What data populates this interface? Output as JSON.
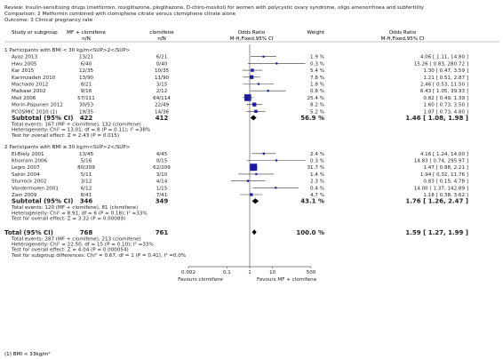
{
  "header": {
    "review": "Review:   Insulin-sensitising drugs (metformin, rosiglitazone, pioglitazone, D-chiro-inositol) for women with polycystic ovary syndrome, oligo amenorrhoea and subfertility",
    "comparison": "Comparison:   2 Metformin combined with clomiphene citrate versus clomiphene citrate alone",
    "outcome": "Outcome:   3 Clinical pregnancy rate"
  },
  "columns": {
    "study": "Study or subgroup",
    "exp": "MF + clomifene",
    "ctrl": "clomifene",
    "or_head": "Odds Ratio",
    "or_sub": "M-H,Fixed,95% CI",
    "weight": "Weight",
    "or2_head": "Odds Ratio",
    "or2_sub": "M-H,Fixed,95% CI",
    "nn": "n/N"
  },
  "colors": {
    "marker": "#1a1aa6",
    "diamond": "#000000",
    "line": "#555555"
  },
  "chart_data": {
    "type": "forest",
    "xscale": "log",
    "xlim": [
      0.002,
      500
    ],
    "x_ticks": [
      0.002,
      0.1,
      1,
      10,
      500
    ],
    "x_tick_labels": [
      "0.002",
      "0.1",
      "1",
      "10",
      "500"
    ],
    "x_left_label": "Favours clomifene",
    "x_right_label": "Favours MF + clomifene",
    "subgroups": [
      {
        "title": "1 Participants with BMI < 30 kg/m<SUP>2</SUP>",
        "studies": [
          {
            "name": "Ayaz 2013",
            "exp": "13/21",
            "ctrl": "6/21",
            "weight": "1.9 %",
            "ci_text": "4.06 [ 1.11, 14.80 ]",
            "or": 4.06,
            "lo": 1.11,
            "hi": 14.8,
            "w": 1.9
          },
          {
            "name": "Hwu 2005",
            "exp": "6/40",
            "ctrl": "0/40",
            "weight": "0.3 %",
            "ci_text": "15.26 [ 0.83, 280.72 ]",
            "or": 15.26,
            "lo": 0.83,
            "hi": 280.72,
            "w": 0.3
          },
          {
            "name": "Kar 2015",
            "exp": "12/35",
            "ctrl": "10/35",
            "weight": "5.4 %",
            "ci_text": "1.30 [ 0.47, 3.59 ]",
            "or": 1.3,
            "lo": 0.47,
            "hi": 3.59,
            "w": 5.4
          },
          {
            "name": "Karimzadeh 2010",
            "exp": "13/90",
            "ctrl": "11/90",
            "weight": "7.8 %",
            "ci_text": "1.21 [ 0.51, 2.87 ]",
            "or": 1.21,
            "lo": 0.51,
            "hi": 2.87,
            "w": 7.8
          },
          {
            "name": "Machado 2012",
            "exp": "8/21",
            "ctrl": "3/15",
            "weight": "1.8 %",
            "ci_text": "2.46 [ 0.53, 11.50 ]",
            "or": 2.46,
            "lo": 0.53,
            "hi": 11.5,
            "w": 1.8
          },
          {
            "name": "Malkawi 2002",
            "exp": "9/16",
            "ctrl": "2/12",
            "weight": "0.8 %",
            "ci_text": "6.43 [ 1.05, 39.33 ]",
            "or": 6.43,
            "lo": 1.05,
            "hi": 39.33,
            "w": 0.8
          },
          {
            "name": "Moll 2006",
            "exp": "57/111",
            "ctrl": "64/114",
            "weight": "25.4 %",
            "ci_text": "0.82 [ 0.49, 1.39 ]",
            "or": 0.82,
            "lo": 0.49,
            "hi": 1.39,
            "w": 25.4
          },
          {
            "name": "Morin-Papunen 2012",
            "exp": "30/53",
            "ctrl": "22/49",
            "weight": "8.2 %",
            "ci_text": "1.60 [ 0.73, 3.50 ]",
            "or": 1.6,
            "lo": 0.73,
            "hi": 3.5,
            "w": 8.2
          },
          {
            "name": "PCOSMIC 2010 (1)",
            "exp": "19/35",
            "ctrl": "14/36",
            "weight": "5.2 %",
            "ci_text": "1.87 [ 0.73, 4.80 ]",
            "or": 1.87,
            "lo": 0.73,
            "hi": 4.8,
            "w": 5.2
          }
        ],
        "subtotal": {
          "label": "Subtotal (95% CI)",
          "exp_n": "422",
          "ctrl_n": "412",
          "weight": "56.9 %",
          "ci_text": "1.46 [ 1.08, 1.98 ]",
          "or": 1.46,
          "lo": 1.08,
          "hi": 1.98
        },
        "stats": [
          "Total events: 167 (MF + clomifene), 132 (clomifene)",
          "Heterogeneity: Chi² = 13.01, df = 8 (P = 0.11); I² =38%",
          "Test for overall effect: Z = 2.43 (P = 0.015)"
        ]
      },
      {
        "title": "2 Participants with BMI ≥ 30 kg/m<SUP>2</SUP>",
        "studies": [
          {
            "name": "El-Biely 2001",
            "exp": "13/45",
            "ctrl": "4/45",
            "weight": "2.4 %",
            "ci_text": "4.16 [ 1.24, 14.00 ]",
            "or": 4.16,
            "lo": 1.24,
            "hi": 14.0,
            "w": 2.4
          },
          {
            "name": "Khorram 2006",
            "exp": "5/16",
            "ctrl": "0/15",
            "weight": "0.3 %",
            "ci_text": "14.83 [ 0.74, 295.97 ]",
            "or": 14.83,
            "lo": 0.74,
            "hi": 295.97,
            "w": 0.3
          },
          {
            "name": "Legro 2007",
            "exp": "80/209",
            "ctrl": "62/209",
            "weight": "31.7 %",
            "ci_text": "1.47 [ 0.98, 2.21 ]",
            "or": 1.47,
            "lo": 0.98,
            "hi": 2.21,
            "w": 31.7
          },
          {
            "name": "Sahin 2004",
            "exp": "5/11",
            "ctrl": "3/10",
            "weight": "1.4 %",
            "ci_text": "1.94 [ 0.32, 11.76 ]",
            "or": 1.94,
            "lo": 0.32,
            "hi": 11.76,
            "w": 1.4
          },
          {
            "name": "Sturrock 2002",
            "exp": "3/12",
            "ctrl": "4/14",
            "weight": "2.3 %",
            "ci_text": "0.83 [ 0.15, 4.78 ]",
            "or": 0.83,
            "lo": 0.15,
            "hi": 4.78,
            "w": 2.3
          },
          {
            "name": "Vandermolen 2001",
            "exp": "6/12",
            "ctrl": "1/15",
            "weight": "0.4 %",
            "ci_text": "14.00 [ 1.37, 142.89 ]",
            "or": 14.0,
            "lo": 1.37,
            "hi": 142.89,
            "w": 0.4
          },
          {
            "name": "Zain 2009",
            "exp": "8/41",
            "ctrl": "7/41",
            "weight": "4.7 %",
            "ci_text": "1.18 [ 0.38, 3.62 ]",
            "or": 1.18,
            "lo": 0.38,
            "hi": 3.62,
            "w": 4.7
          }
        ],
        "subtotal": {
          "label": "Subtotal (95% CI)",
          "exp_n": "346",
          "ctrl_n": "349",
          "weight": "43.1 %",
          "ci_text": "1.76 [ 1.26, 2.47 ]",
          "or": 1.76,
          "lo": 1.26,
          "hi": 2.47
        },
        "stats": [
          "Total events: 120 (MF + clomifene), 81 (clomifene)",
          "Heterogeneity: Chi² = 8.91, df = 6 (P = 0.18); I² =33%",
          "Test for overall effect: Z = 3.32 (P = 0.00089)"
        ]
      }
    ],
    "total": {
      "label": "Total (95% CI)",
      "exp_n": "768",
      "ctrl_n": "761",
      "weight": "100.0 %",
      "ci_text": "1.59 [ 1.27, 1.99 ]",
      "or": 1.59,
      "lo": 1.27,
      "hi": 1.99
    },
    "total_stats": [
      "Total events: 287 (MF + clomifene), 213 (clomifene)",
      "Heterogeneity: Chi² = 22.50, df = 15 (P = 0.10); I² =33%",
      "Test for overall effect: Z = 4.04 (P = 0.000054)",
      "Test for subgroup differences: Chi² = 0.67, df = 1 (P = 0.41), I² =0.0%"
    ]
  },
  "footnote": "(1) BMI < 33kg/m²"
}
